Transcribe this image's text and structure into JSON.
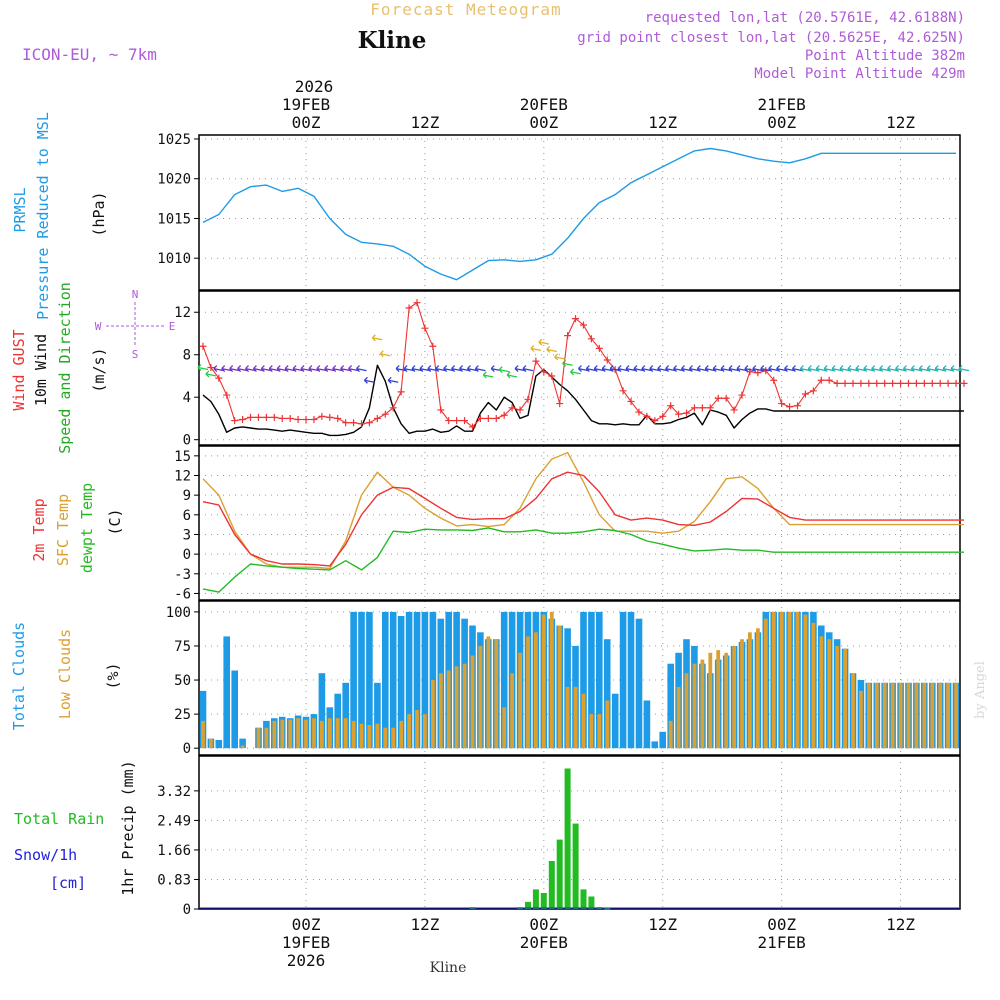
{
  "header": {
    "title": "Forecast Meteogram",
    "location": "Kline",
    "model": "ICON-EU, ~ 7km",
    "requested": "requested lon,lat (20.5761E, 42.6188N)",
    "gridpoint": "grid point closest lon,lat (20.5625E, 42.625N)",
    "point_alt": "Point Altitude 382m",
    "model_alt": "Model Point Altitude 429m",
    "footer_location": "Kline",
    "watermark": "by Angel"
  },
  "colors": {
    "pressure": "#1e9be6",
    "gust": "#ee3333",
    "wind": "#000000",
    "wind_label_green": "#22aa22",
    "temp2m": "#ee3333",
    "sfc": "#dba030",
    "dewpt": "#22bb22",
    "total_clouds": "#1e9be6",
    "low_clouds": "#dba030",
    "rain": "#22bb22",
    "snow": "#2222dd",
    "header_purple": "#b05ad8",
    "title_orange": "#e8c070"
  },
  "chart_data": [
    {
      "type": "line",
      "name": "pressure",
      "ylabels": [
        "PRMSL",
        "Pressure Reduced to MSL",
        "(hPa)"
      ],
      "ylim": [
        1006,
        1025.5
      ],
      "yticks": [
        1010,
        1015,
        1020,
        1025
      ],
      "x": [
        0,
        2,
        4,
        6,
        8,
        10,
        12,
        14,
        16,
        18,
        20,
        22,
        24,
        26,
        28,
        30,
        32,
        34,
        36,
        38,
        40,
        42,
        44,
        46,
        48,
        49,
        50,
        52,
        54,
        56,
        58,
        60,
        62,
        64,
        66,
        68,
        70,
        72,
        74,
        76,
        78,
        80,
        82,
        84,
        86,
        88,
        90,
        91,
        92,
        94,
        95
      ],
      "values": [
        1014.5,
        1015.5,
        1018,
        1019,
        1019.2,
        1018.4,
        1018.8,
        1017.8,
        1015,
        1013,
        1012,
        1011.8,
        1011.5,
        1010.5,
        1009,
        1008,
        1007.3,
        1008.5,
        1009.7,
        1009.8,
        1009.6,
        1009.8,
        1010.5,
        1012.5,
        1015,
        1016,
        1017,
        1018,
        1019.5,
        1020.5,
        1021.5,
        1022.5,
        1023.5,
        1023.8,
        1023.5,
        1023,
        1022.5,
        1022.2,
        1022,
        1022.5,
        1023.2,
        1023.2,
        1023.2,
        1023.2,
        1023.2,
        1023.2,
        1023.2,
        1023.2,
        1023.2,
        1023.2,
        1023.2
      ]
    },
    {
      "type": "line",
      "name": "wind",
      "ylabels": [
        "Wind GUST",
        "10m Wind",
        "Speed and Direction",
        "(m/s)"
      ],
      "compass": {
        "n": "N",
        "s": "S",
        "e": "E",
        "w": "W"
      },
      "ylim": [
        -0.5,
        14
      ],
      "yticks": [
        0,
        4,
        8,
        12
      ],
      "gust_x": [
        0,
        1,
        2,
        3,
        4,
        5,
        6,
        7,
        8,
        9,
        10,
        11,
        12,
        13,
        14,
        15,
        16,
        17,
        18,
        19,
        20,
        21,
        22,
        23,
        24,
        25,
        26,
        27,
        28,
        29,
        30,
        31,
        32,
        33,
        34,
        35,
        36,
        37,
        38,
        39,
        40,
        41,
        42,
        43,
        44,
        45,
        46,
        47,
        48,
        49,
        50,
        51,
        52,
        53,
        54,
        55,
        56,
        57,
        58,
        59,
        60,
        61,
        62,
        63,
        64,
        65,
        66,
        67,
        68,
        69,
        70,
        71,
        72,
        73,
        74,
        75,
        76,
        77,
        78,
        79,
        80,
        81,
        82,
        83,
        84,
        85,
        86,
        87,
        88,
        89,
        90,
        91,
        92,
        93,
        94,
        95,
        96
      ],
      "gust": [
        8.8,
        6.8,
        5.8,
        4.2,
        1.8,
        1.9,
        2.1,
        2.1,
        2.1,
        2.1,
        2.0,
        2.0,
        1.9,
        1.9,
        1.9,
        2.2,
        2.1,
        2.0,
        1.6,
        1.6,
        1.5,
        1.6,
        2.0,
        2.4,
        3.0,
        4.5,
        12.4,
        12.9,
        10.5,
        8.8,
        2.8,
        1.8,
        1.8,
        1.8,
        1.2,
        2.0,
        2.0,
        2.0,
        2.3,
        3.0,
        2.8,
        3.8,
        7.4,
        6.4,
        6.0,
        3.4,
        9.8,
        11.4,
        10.8,
        9.5,
        8.6,
        7.5,
        6.6,
        4.6,
        3.6,
        2.6,
        2.2,
        1.8,
        2.2,
        3.2,
        2.4,
        2.5,
        3.0,
        3.0,
        3.0,
        3.9,
        3.9,
        2.8,
        4.2,
        6.4,
        6.3,
        6.5,
        5.6,
        3.4,
        3.1,
        3.2,
        4.3,
        4.6,
        5.6,
        5.6,
        5.3,
        5.3,
        5.3,
        5.3,
        5.3,
        5.3,
        5.3,
        5.3,
        5.3,
        5.3,
        5.3,
        5.3,
        5.3,
        5.3,
        5.3,
        5.3,
        5.3
      ],
      "wind": [
        4.2,
        3.6,
        2.4,
        0.7,
        1.1,
        1.2,
        1.1,
        1.0,
        1.0,
        0.9,
        0.8,
        0.9,
        0.8,
        0.7,
        0.6,
        0.6,
        0.4,
        0.4,
        0.5,
        0.7,
        1.2,
        3.0,
        7.0,
        5.5,
        3.0,
        1.5,
        0.6,
        0.8,
        0.8,
        1.0,
        0.7,
        0.8,
        1.3,
        0.8,
        0.8,
        2.5,
        3.5,
        2.8,
        4.0,
        3.5,
        2.0,
        2.3,
        6.0,
        6.6,
        5.9,
        5.2,
        4.6,
        3.8,
        2.8,
        1.8,
        1.5,
        1.5,
        1.4,
        1.5,
        1.4,
        1.4,
        2.3,
        1.5,
        1.5,
        1.6,
        1.9,
        2.1,
        2.5,
        1.4,
        2.8,
        2.6,
        2.3,
        1.1,
        1.9,
        2.5,
        2.9,
        2.9,
        2.7,
        2.7,
        2.7,
        2.7,
        2.7,
        2.7,
        2.7,
        2.7,
        2.7,
        2.7,
        2.7,
        2.7,
        2.7,
        2.7,
        2.7,
        2.7,
        2.7,
        2.7,
        2.7,
        2.7,
        2.7,
        2.7,
        2.7,
        2.7,
        2.7
      ]
    },
    {
      "type": "line",
      "name": "temperature",
      "ylabels": [
        "2m Temp",
        "SFC Temp",
        "dewpt Temp",
        "(C)"
      ],
      "ylim": [
        -7,
        16.5
      ],
      "yticks": [
        -6,
        -3,
        0,
        3,
        6,
        9,
        12,
        15
      ],
      "x": [
        0,
        2,
        4,
        6,
        8,
        10,
        12,
        14,
        16,
        18,
        20,
        22,
        24,
        26,
        28,
        30,
        32,
        34,
        36,
        38,
        40,
        42,
        44,
        46,
        48,
        50,
        52,
        54,
        56,
        58,
        60,
        62,
        64,
        66,
        68,
        70,
        72,
        74,
        76,
        78,
        80,
        82,
        84,
        86,
        88,
        90,
        92,
        94,
        95,
        96
      ],
      "t2m": [
        8,
        7.5,
        3,
        0,
        -1,
        -1.5,
        -1.5,
        -1.6,
        -1.8,
        1.5,
        6,
        9,
        10.2,
        10,
        8.5,
        7,
        5.6,
        5.3,
        5.4,
        5.4,
        6.5,
        8.5,
        11.5,
        12.5,
        12,
        9.5,
        6,
        5.2,
        5.5,
        5.2,
        4.5,
        4.4,
        4.9,
        6.5,
        8.5,
        8.4,
        7,
        5.6,
        5.2,
        5.2,
        5.2,
        5.2,
        5.2,
        5.2,
        5.2,
        5.2,
        5.2,
        5.2,
        5.2,
        5.2
      ],
      "sfc": [
        11.5,
        9,
        3.5,
        0,
        -1.5,
        -2,
        -2,
        -2,
        -2.2,
        2,
        9,
        12.5,
        10.2,
        9,
        7,
        5.5,
        4.3,
        4.5,
        4.2,
        4.5,
        7,
        11.5,
        14.5,
        15.5,
        11,
        6,
        3.5,
        3.5,
        3.5,
        3.2,
        3.5,
        5,
        8,
        11.5,
        11.8,
        10,
        7,
        4.5,
        4.5,
        4.5,
        4.5,
        4.5,
        4.5,
        4.5,
        4.5,
        4.5,
        4.5,
        4.5,
        4.5,
        4.5
      ],
      "dew": [
        -5.3,
        -5.8,
        -3.5,
        -1.5,
        -1.8,
        -2,
        -2.2,
        -2.3,
        -2.4,
        -1,
        -2.4,
        -0.5,
        3.5,
        3.3,
        3.8,
        3.7,
        3.7,
        3.6,
        4.0,
        3.4,
        3.4,
        3.7,
        3.2,
        3.2,
        3.4,
        3.8,
        3.6,
        3.0,
        2.0,
        1.5,
        0.9,
        0.5,
        0.6,
        0.8,
        0.6,
        0.6,
        0.3,
        0.3,
        0.3,
        0.3,
        0.3,
        0.3,
        0.3,
        0.3,
        0.3,
        0.3,
        0.3,
        0.3,
        0.3,
        0.3
      ]
    },
    {
      "type": "bar",
      "name": "clouds",
      "ylabels": [
        "Total Clouds",
        "Low Clouds",
        "(%)"
      ],
      "ylim": [
        -5,
        108
      ],
      "yticks": [
        0,
        25,
        50,
        75,
        100
      ],
      "total": [
        42,
        7,
        6,
        82,
        57,
        7,
        0,
        15,
        20,
        22,
        23,
        22,
        24,
        23,
        25,
        55,
        30,
        40,
        48,
        100,
        100,
        100,
        48,
        100,
        100,
        97,
        100,
        100,
        100,
        100,
        95,
        100,
        100,
        95,
        90,
        85,
        80,
        80,
        100,
        100,
        100,
        100,
        100,
        100,
        95,
        90,
        88,
        75,
        100,
        100,
        100,
        80,
        40,
        100,
        100,
        95,
        35,
        5,
        12,
        62,
        70,
        80,
        75,
        62,
        55,
        65,
        68,
        75,
        78,
        80,
        85,
        100,
        100,
        100,
        100,
        100,
        100,
        100,
        90,
        85,
        80,
        73,
        55,
        50,
        48,
        48,
        48,
        48,
        48,
        48,
        48,
        48,
        48,
        48,
        48,
        48,
        48
      ],
      "low": [
        20,
        7,
        0,
        0,
        0,
        2,
        0,
        15,
        15,
        20,
        21,
        21,
        22,
        21,
        22,
        20,
        22,
        22,
        22,
        20,
        18,
        17,
        18,
        15,
        15,
        20,
        25,
        28,
        25,
        50,
        55,
        57,
        60,
        62,
        68,
        75,
        82,
        80,
        30,
        55,
        70,
        82,
        85,
        98,
        100,
        90,
        45,
        45,
        40,
        25,
        25,
        35,
        0,
        0,
        0,
        0,
        0,
        0,
        0,
        20,
        45,
        55,
        62,
        65,
        70,
        72,
        70,
        75,
        80,
        85,
        88,
        95,
        100,
        100,
        100,
        100,
        98,
        92,
        82,
        80,
        75,
        73,
        55,
        42,
        48,
        48,
        48,
        48,
        48,
        48,
        48,
        48,
        48,
        48,
        48,
        48,
        48
      ]
    },
    {
      "type": "bar",
      "name": "precip",
      "ylabels": [
        "Total Rain",
        "Snow/1h",
        "[cm]",
        "1hr Precip (mm)"
      ],
      "ylim": [
        0,
        4.3
      ],
      "yticks": [
        0,
        0.83,
        1.66,
        2.49,
        3.32
      ],
      "ytick_labels": [
        "0",
        "0.83",
        "1.66",
        "2.49",
        "3.32"
      ],
      "x": [
        34,
        40,
        41,
        42,
        43,
        44,
        45,
        46,
        47,
        48,
        49,
        50,
        51
      ],
      "rain": [
        0.05,
        0.05,
        0.2,
        0.55,
        0.45,
        1.35,
        1.95,
        3.95,
        2.4,
        0.55,
        0.35,
        0.05,
        0.02
      ]
    }
  ],
  "time_axis": {
    "top_year": "2026",
    "top_labels": [
      {
        "t": 13,
        "line1": "19FEB",
        "line2": "00Z"
      },
      {
        "t": 28,
        "line1": "",
        "line2": "12Z"
      },
      {
        "t": 43,
        "line1": "20FEB",
        "line2": "00Z"
      },
      {
        "t": 58,
        "line1": "",
        "line2": "12Z"
      },
      {
        "t": 73,
        "line1": "21FEB",
        "line2": "00Z"
      },
      {
        "t": 88,
        "line1": "",
        "line2": "12Z"
      }
    ],
    "bottom_labels": [
      {
        "t": 13,
        "line1": "00Z",
        "line2": "19FEB",
        "line3": "2026"
      },
      {
        "t": 28,
        "line1": "12Z",
        "line2": "",
        "line3": ""
      },
      {
        "t": 43,
        "line1": "00Z",
        "line2": "20FEB",
        "line3": ""
      },
      {
        "t": 58,
        "line1": "12Z",
        "line2": "",
        "line3": ""
      },
      {
        "t": 73,
        "line1": "00Z",
        "line2": "21FEB",
        "line3": ""
      },
      {
        "t": 88,
        "line1": "12Z",
        "line2": "",
        "line3": ""
      }
    ],
    "t_start": -0.5,
    "t_end": 95.5
  }
}
